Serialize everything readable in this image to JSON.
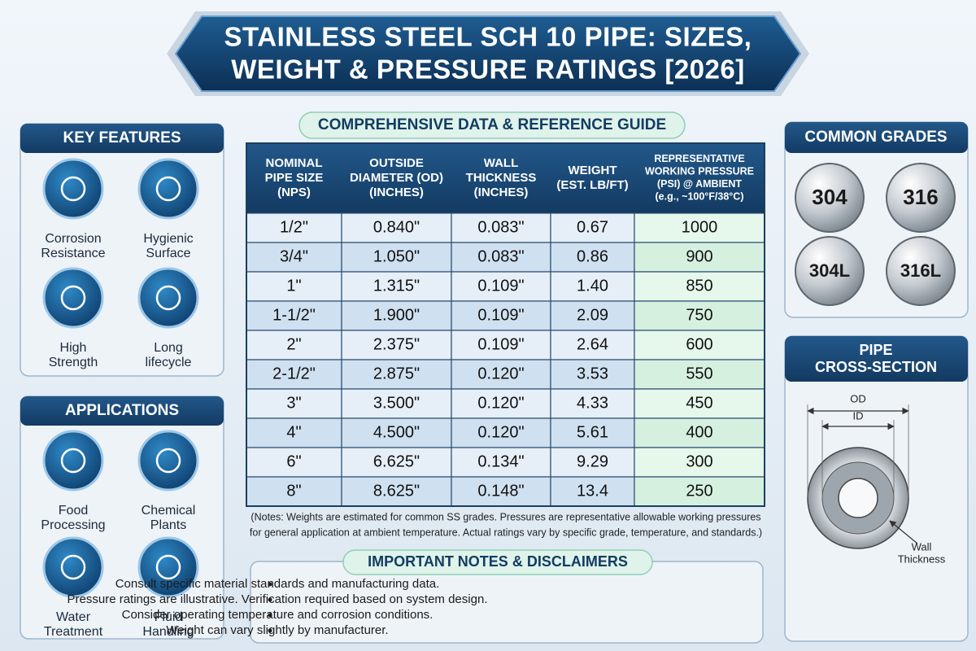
{
  "header": {
    "title_lines": [
      "STAINLESS STEEL SCH 10 PIPE: SIZES,",
      "WEIGHT & PRESSURE RATINGS [2026]"
    ]
  },
  "key_features": {
    "heading": "KEY FEATURES",
    "items": [
      [
        "Corrosion",
        "Resistance"
      ],
      [
        "Hygienic",
        "Surface"
      ],
      [
        "High",
        "Strength"
      ],
      [
        "Long",
        "lifecycle"
      ]
    ]
  },
  "applications": {
    "heading": "APPLICATIONS",
    "items": [
      [
        "Food",
        "Processing"
      ],
      [
        "Chemical",
        "Plants"
      ],
      [
        "Water",
        "Treatment"
      ],
      [
        "Fluid",
        "Handling"
      ]
    ]
  },
  "table": {
    "heading": "COMPREHENSIVE DATA & REFERENCE GUIDE",
    "columns": [
      [
        "NOMINAL",
        "PIPE SIZE",
        "(NPS)"
      ],
      [
        "OUTSIDE",
        "DIAMETER (OD)",
        "(INCHES)"
      ],
      [
        "WALL",
        "THICKNESS",
        "(INCHES)"
      ],
      [
        "WEIGHT",
        "(EST. LB/FT)"
      ],
      [
        "REPRESENTATIVE",
        "WORKING PRESSURE",
        "(PSI) @ AMBIENT",
        "(e.g., ~100°F/38°C)"
      ]
    ],
    "rows": [
      [
        "1/2\"",
        "0.840\"",
        "0.083\"",
        "0.67",
        "1000"
      ],
      [
        "3/4\"",
        "1.050\"",
        "0.083\"",
        "0.86",
        "900"
      ],
      [
        "1\"",
        "1.315\"",
        "0.109\"",
        "1.40",
        "850"
      ],
      [
        "1-1/2\"",
        "1.900\"",
        "0.109\"",
        "2.09",
        "750"
      ],
      [
        "2\"",
        "2.375\"",
        "0.109\"",
        "2.64",
        "600"
      ],
      [
        "2-1/2\"",
        "2.875\"",
        "0.120\"",
        "3.53",
        "550"
      ],
      [
        "3\"",
        "3.500\"",
        "0.120\"",
        "4.33",
        "450"
      ],
      [
        "4\"",
        "4.500\"",
        "0.120\"",
        "5.61",
        "400"
      ],
      [
        "6\"",
        "6.625\"",
        "0.134\"",
        "9.29",
        "300"
      ],
      [
        "8\"",
        "8.625\"",
        "0.148\"",
        "13.4",
        "250"
      ]
    ],
    "note_lines": [
      "(Notes: Weights are estimated for common SS grades. Pressures are representative allowable working pressures",
      "for general application at ambient temperature. Actual ratings vary by specific grade, temperature, and standards.)"
    ]
  },
  "important_notes": {
    "heading": "IMPORTANT NOTES & DISCLAIMERS",
    "bullets": [
      "Consult specific material standards and manufacturing data.",
      "Pressure ratings are illustrative. Verification required based on system design.",
      "Consider operating temperature and corrosion conditions.",
      "Weight can vary slightly by manufacturer."
    ]
  },
  "common_grades": {
    "heading": "COMMON GRADES",
    "grades": [
      "304",
      "316",
      "304L",
      "316L"
    ]
  },
  "cross_section": {
    "heading_lines": [
      "PIPE",
      "CROSS-SECTION"
    ],
    "od_label": "OD",
    "id_label": "ID",
    "wall_label_lines": [
      "Wall",
      "Thickness"
    ]
  }
}
